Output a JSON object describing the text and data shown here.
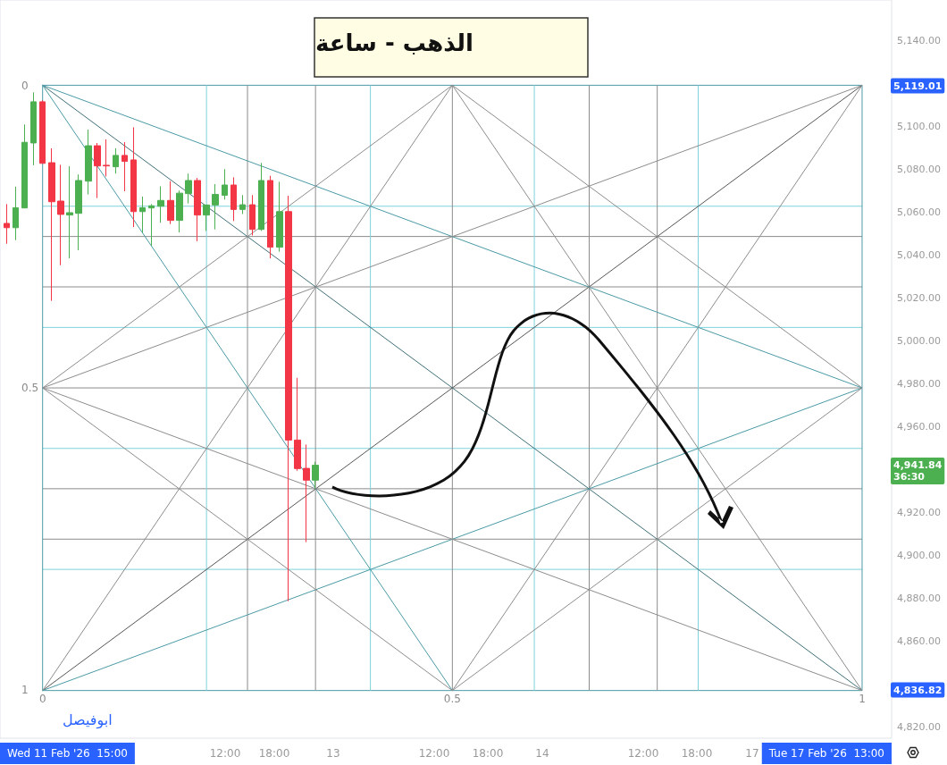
{
  "chart_data": {
    "type": "candlestick",
    "title": "الذهب - ساعة",
    "x": [
      -0.044,
      -0.033,
      -0.022,
      -0.011,
      0,
      0.011,
      0.022,
      0.033,
      0.044,
      0.056,
      0.067,
      0.078,
      0.089,
      0.1,
      0.111,
      0.122,
      0.133,
      0.144,
      0.156,
      0.167,
      0.178,
      0.189,
      0.2,
      0.211,
      0.222,
      0.233,
      0.244,
      0.256,
      0.267,
      0.278,
      0.289,
      0.3,
      0.311,
      0.322,
      0.333
    ],
    "ohlc": [
      [
        5054.6,
        5063.6,
        5045.1,
        5052.6
      ],
      [
        5052.6,
        5071.7,
        5046.8,
        5061.9
      ],
      [
        5061.8,
        5100.7,
        5061.8,
        5092.4
      ],
      [
        5092.1,
        5115.7,
        5081.7,
        5111.3
      ],
      [
        5111.3,
        5112.0,
        5082.6,
        5082.6
      ],
      [
        5082.9,
        5089.6,
        5018.5,
        5064.7
      ],
      [
        5065.0,
        5081.9,
        5035.1,
        5058.8
      ],
      [
        5058.5,
        5081.3,
        5038.3,
        5059.6
      ],
      [
        5059.3,
        5077.4,
        5042.1,
        5074.6
      ],
      [
        5074.3,
        5098.3,
        5068.1,
        5090.8
      ],
      [
        5090.8,
        5092.1,
        5066.4,
        5081.4
      ],
      [
        5081.7,
        5093.8,
        5076.5,
        5081.4
      ],
      [
        5081.0,
        5089.6,
        5077.8,
        5086.3
      ],
      [
        5086.3,
        5092.5,
        5069.6,
        5083.5
      ],
      [
        5084.2,
        5099.4,
        5052.9,
        5060.1
      ],
      [
        5060.1,
        5067.1,
        5050.4,
        5061.9
      ],
      [
        5061.8,
        5063.6,
        5044.2,
        5062.8
      ],
      [
        5062.6,
        5071.9,
        5054.9,
        5065.3
      ],
      [
        5065.3,
        5074.3,
        5054.3,
        5056.0
      ],
      [
        5056.0,
        5069.9,
        5050.4,
        5068.7
      ],
      [
        5068.5,
        5077.8,
        5063.9,
        5074.6
      ],
      [
        5074.6,
        5075.8,
        5046.3,
        5058.5
      ],
      [
        5058.5,
        5063.2,
        5051.1,
        5063.2
      ],
      [
        5063.2,
        5072.9,
        5051.8,
        5068.1
      ],
      [
        5067.7,
        5079.9,
        5065.7,
        5072.5
      ],
      [
        5072.5,
        5076.1,
        5055.7,
        5061.1
      ],
      [
        5061.1,
        5067.8,
        5059.0,
        5063.3
      ],
      [
        5063.3,
        5067.8,
        5049.0,
        5051.8
      ],
      [
        5051.8,
        5082.8,
        5051.1,
        5074.6
      ],
      [
        5074.6,
        5076.8,
        5038.3,
        5043.5
      ],
      [
        5043.5,
        5074.0,
        5041.4,
        5060.1
      ],
      [
        5060.1,
        5067.5,
        4878.5,
        4953.6
      ],
      [
        4953.6,
        4982.6,
        4939.3,
        4940.3
      ],
      [
        4940.4,
        4951.5,
        4906.0,
        4934.9
      ],
      [
        4934.9,
        4943.5,
        4931.0,
        4941.84
      ]
    ],
    "colors": [
      "#f23645",
      "#4caf50",
      "#4caf50",
      "#4caf50",
      "#f23645",
      "#f23645",
      "#f23645",
      "#4caf50",
      "#4caf50",
      "#4caf50",
      "#f23645",
      "#f23645",
      "#4caf50",
      "#f23645",
      "#f23645",
      "#4caf50",
      "#4caf50",
      "#4caf50",
      "#f23645",
      "#4caf50",
      "#4caf50",
      "#f23645",
      "#4caf50",
      "#4caf50",
      "#4caf50",
      "#f23645",
      "#4caf50",
      "#f23645",
      "#4caf50",
      "#f23645",
      "#4caf50",
      "#f23645",
      "#f23645",
      "#f23645",
      "#4caf50"
    ],
    "series": [
      {
        "type": "line",
        "color": "#4a9aa5",
        "x": [
          0,
          1
        ],
        "values": [
          5119.01,
          5119.01
        ]
      },
      {
        "type": "line",
        "color": "#7fd3db",
        "x": [
          0,
          1
        ],
        "values": [
          5062.6,
          5062.6
        ]
      },
      {
        "type": "line",
        "color": "#8c8c8c",
        "x": [
          0,
          1
        ],
        "values": [
          5048.5,
          5048.5
        ]
      },
      {
        "type": "line",
        "color": "#8c8c8c",
        "x": [
          0,
          1
        ],
        "values": [
          5025.0,
          5025.0
        ]
      },
      {
        "type": "line",
        "color": "#7fd3db",
        "x": [
          0,
          1
        ],
        "values": [
          5006.1,
          5006.1
        ]
      },
      {
        "type": "line",
        "color": "#8c8c8c",
        "x": [
          0,
          1
        ],
        "values": [
          4977.9,
          4977.9
        ]
      },
      {
        "type": "line",
        "color": "#7fd3db",
        "x": [
          0,
          1
        ],
        "values": [
          4949.7,
          4949.7
        ]
      },
      {
        "type": "line",
        "color": "#8c8c8c",
        "x": [
          0,
          1
        ],
        "values": [
          4930.9,
          4930.9
        ]
      },
      {
        "type": "line",
        "color": "#8c8c8c",
        "x": [
          0,
          1
        ],
        "values": [
          4907.4,
          4907.4
        ]
      },
      {
        "type": "line",
        "color": "#7fd3db",
        "x": [
          0,
          1
        ],
        "values": [
          4893.3,
          4893.3
        ]
      },
      {
        "type": "line",
        "color": "#4a9aa5",
        "x": [
          0,
          1
        ],
        "values": [
          4836.82,
          4836.82
        ]
      },
      {
        "type": "line",
        "color": "#4a9aa5",
        "x": [
          0,
          0
        ],
        "values": [
          5119.01,
          4836.82
        ]
      },
      {
        "type": "line",
        "color": "#7fd3db",
        "x": [
          0.2,
          0.2
        ],
        "values": [
          5119.01,
          4836.82
        ]
      },
      {
        "type": "line",
        "color": "#8c8c8c",
        "x": [
          0.25,
          0.25
        ],
        "values": [
          5119.01,
          4836.82
        ]
      },
      {
        "type": "line",
        "color": "#8c8c8c",
        "x": [
          0.333,
          0.333
        ],
        "values": [
          5119.01,
          4836.82
        ]
      },
      {
        "type": "line",
        "color": "#7fd3db",
        "x": [
          0.4,
          0.4
        ],
        "values": [
          5119.01,
          4836.82
        ]
      },
      {
        "type": "line",
        "color": "#8c8c8c",
        "x": [
          0.5,
          0.5
        ],
        "values": [
          5119.01,
          4836.82
        ]
      },
      {
        "type": "line",
        "color": "#7fd3db",
        "x": [
          0.6,
          0.6
        ],
        "values": [
          5119.01,
          4836.82
        ]
      },
      {
        "type": "line",
        "color": "#8c8c8c",
        "x": [
          0.667,
          0.667
        ],
        "values": [
          5119.01,
          4836.82
        ]
      },
      {
        "type": "line",
        "color": "#8c8c8c",
        "x": [
          0.75,
          0.75
        ],
        "values": [
          5119.01,
          4836.82
        ]
      },
      {
        "type": "line",
        "color": "#7fd3db",
        "x": [
          0.8,
          0.8
        ],
        "values": [
          5119.01,
          4836.82
        ]
      },
      {
        "type": "line",
        "color": "#4a9aa5",
        "x": [
          1,
          1
        ],
        "values": [
          5119.01,
          4836.82
        ]
      },
      {
        "type": "line",
        "color": "#3f6f78",
        "x": [
          0,
          1
        ],
        "values": [
          5119.01,
          4836.82
        ]
      },
      {
        "type": "line",
        "color": "#555555",
        "x": [
          0,
          1
        ],
        "values": [
          4836.82,
          5119.01
        ]
      },
      {
        "type": "line",
        "color": "#4a9aa5",
        "x": [
          0,
          1
        ],
        "values": [
          5119.01,
          4977.9
        ]
      },
      {
        "type": "line",
        "color": "#4a9aa5",
        "x": [
          0,
          0.5
        ],
        "values": [
          5119.01,
          4836.82
        ]
      },
      {
        "type": "line",
        "color": "#8c8c8c",
        "x": [
          0,
          1
        ],
        "values": [
          4977.9,
          5119.01
        ]
      },
      {
        "type": "line",
        "color": "#8c8c8c",
        "x": [
          0.5,
          1
        ],
        "values": [
          4836.82,
          5119.01
        ]
      },
      {
        "type": "line",
        "color": "#8c8c8c",
        "x": [
          0,
          0.5
        ],
        "values": [
          4836.82,
          5119.01
        ]
      },
      {
        "type": "line",
        "color": "#4a9aa5",
        "x": [
          0,
          1
        ],
        "values": [
          4836.82,
          4977.9
        ]
      },
      {
        "type": "line",
        "color": "#8c8c8c",
        "x": [
          0.5,
          1
        ],
        "values": [
          5119.01,
          4836.82
        ]
      },
      {
        "type": "line",
        "color": "#8c8c8c",
        "x": [
          0,
          1
        ],
        "values": [
          4977.9,
          4836.82
        ]
      },
      {
        "type": "line",
        "color": "#8c8c8c",
        "x": [
          0,
          0.5
        ],
        "values": [
          4977.9,
          5119.01
        ]
      },
      {
        "type": "line",
        "color": "#8c8c8c",
        "x": [
          0.5,
          1
        ],
        "values": [
          5119.01,
          4977.9
        ]
      },
      {
        "type": "line",
        "color": "#8c8c8c",
        "x": [
          0.5,
          1
        ],
        "values": [
          4836.82,
          4977.9
        ]
      },
      {
        "type": "line",
        "color": "#8c8c8c",
        "x": [
          0,
          0.5
        ],
        "values": [
          4977.9,
          4836.82
        ]
      }
    ],
    "xlim": [
      -0.052,
      1.036
    ],
    "xticks": [
      0,
      0.5,
      1
    ],
    "ylim": [
      4814.6,
      5158.75
    ],
    "yticks": [
      {
        "value": 4820,
        "label": "4,820.00"
      },
      {
        "value": 4860,
        "label": "4,860.00"
      },
      {
        "value": 4880,
        "label": "4,880.00"
      },
      {
        "value": 4900,
        "label": "4,900.00"
      },
      {
        "value": 4920,
        "label": "4,920.00"
      },
      {
        "value": 4960,
        "label": "4,960.00"
      },
      {
        "value": 4980,
        "label": "4,980.00"
      },
      {
        "value": 5000,
        "label": "5,000.00"
      },
      {
        "value": 5020,
        "label": "5,020.00"
      },
      {
        "value": 5040,
        "label": "5,040.00"
      },
      {
        "value": 5060,
        "label": "5,060.00"
      },
      {
        "value": 5080,
        "label": "5,080.00"
      },
      {
        "value": 5100,
        "label": "5,100.00"
      },
      {
        "value": 5140,
        "label": "5,140.00"
      }
    ],
    "y2lim": [
      1.08,
      -0.142
    ],
    "y2ticks": [
      0,
      0.5,
      1
    ],
    "annotations": [
      "12:00",
      "18:00",
      "13",
      "12:00",
      "18:00",
      "14",
      "12:00",
      "18:00",
      "17",
      "Wed 11 Feb '26  15:00",
      "Tue 17 Feb '26  13:00",
      "5,119.01",
      "4,941.84\n36:30",
      "4,836.82",
      "ابوفيصل"
    ]
  }
}
